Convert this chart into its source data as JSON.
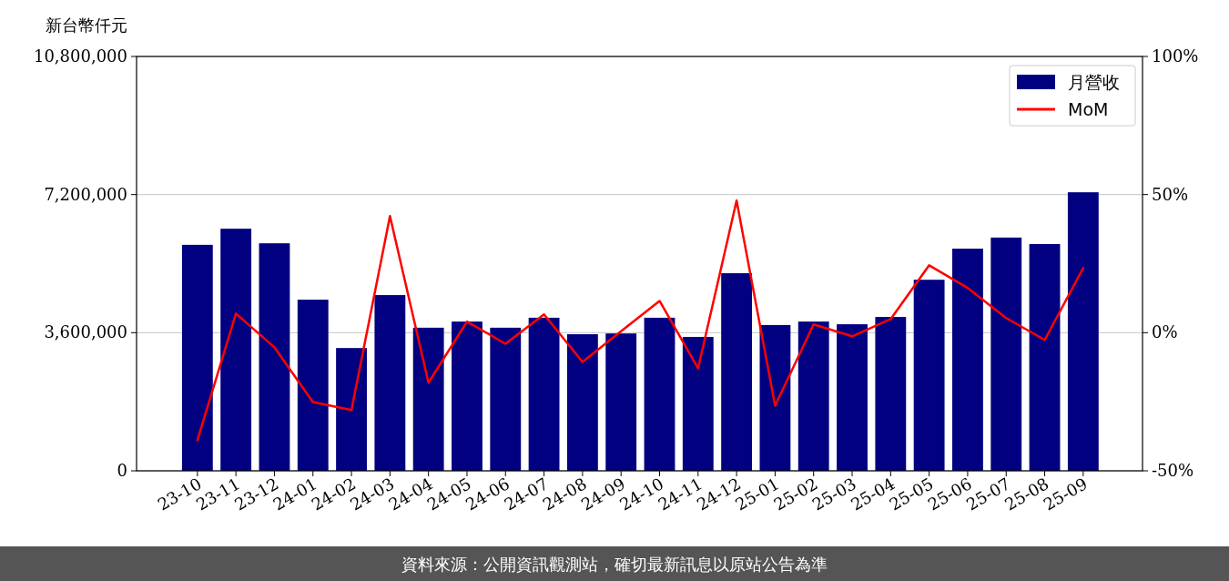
{
  "chart_data": {
    "type": "bar",
    "ylabel": "新台幣仟元",
    "categories": [
      "23-10",
      "23-11",
      "23-12",
      "24-01",
      "24-02",
      "24-03",
      "24-04",
      "24-05",
      "24-06",
      "24-07",
      "24-08",
      "24-09",
      "24-10",
      "24-11",
      "24-12",
      "25-01",
      "25-02",
      "25-03",
      "25-04",
      "25-05",
      "25-06",
      "25-07",
      "25-08",
      "25-09"
    ],
    "series": [
      {
        "name": "月營收",
        "type": "bar",
        "color": "#000080",
        "values": [
          5890000,
          6310000,
          5930000,
          4460000,
          3200000,
          4580000,
          3730000,
          3890000,
          3730000,
          3990000,
          3560000,
          3580000,
          3990000,
          3490000,
          5150000,
          3800000,
          3890000,
          3820000,
          4010000,
          4980000,
          5790000,
          6080000,
          5910000,
          7260000
        ]
      },
      {
        "name": "MoM",
        "type": "line",
        "axis": "y2",
        "color": "#ff0000",
        "values": [
          -38.9,
          6.9,
          -5.3,
          -25.1,
          -28.0,
          42.2,
          -18.1,
          4.0,
          -4.0,
          6.6,
          -10.6,
          0.5,
          11.5,
          -12.9,
          47.8,
          -26.4,
          3.0,
          -1.3,
          4.9,
          24.4,
          16.2,
          5.3,
          -2.6,
          23.4
        ]
      }
    ],
    "ylim": [
      0,
      10800000
    ],
    "yticks": [
      0,
      {
        "value": 3600000,
        "label": "3,600,000"
      },
      {
        "value": 7200000,
        "label": "7,200,000"
      },
      {
        "value": 10800000,
        "label": "10,800,000"
      }
    ],
    "y2lim": [
      -50,
      100
    ],
    "y2ticks": [
      {
        "value": -50,
        "label": "-50%"
      },
      {
        "value": 0,
        "label": "0%"
      },
      {
        "value": 50,
        "label": "50%"
      },
      {
        "value": 100,
        "label": "100%"
      }
    ],
    "grid": "y",
    "legend": "top right",
    "annotations": [
      "資料來源：公開資訊觀測站，確切最新訊息以原站公告為準"
    ]
  }
}
